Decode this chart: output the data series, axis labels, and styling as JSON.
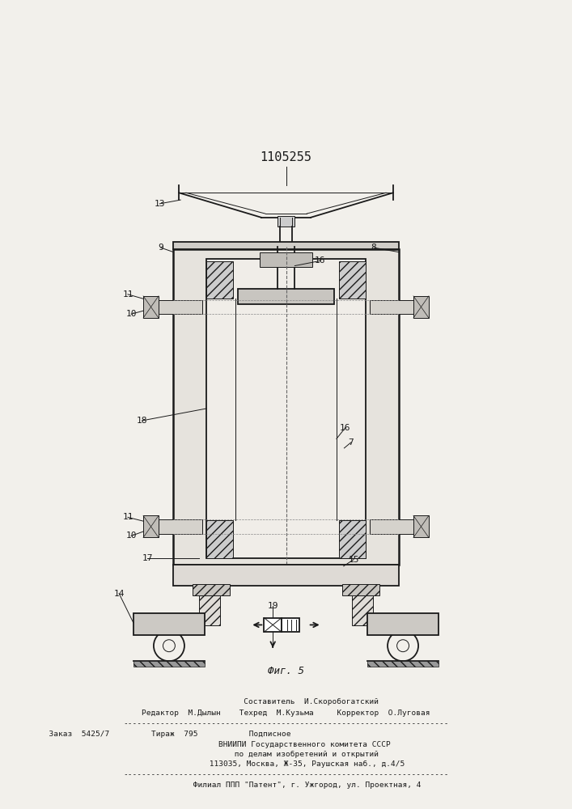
{
  "title": "1105255",
  "title_fontsize": 11,
  "fig_caption": "Фиг. 5",
  "bg_color": "#f2f0eb",
  "line_color": "#1a1a1a",
  "footer_lines": [
    "           Составитель  И.Скоробогатский",
    "Редактор  М.Дылын    Техред  М.Кузьма     Корректор  О.Луговая",
    "----------------------------------------------------------------------",
    "  Заказ  5425/7         Тираж  795           Подписное",
    "        ВНИИПИ Государственного комитета СССР",
    "         по делам изобретений и открытий",
    "         113035, Москва, Ж-35, Раушская наб., д.4/5",
    "----------------------------------------------------------------------",
    "         Филиал ППП \"Патент\", г. Ужгород, ул. Проектная, 4"
  ]
}
